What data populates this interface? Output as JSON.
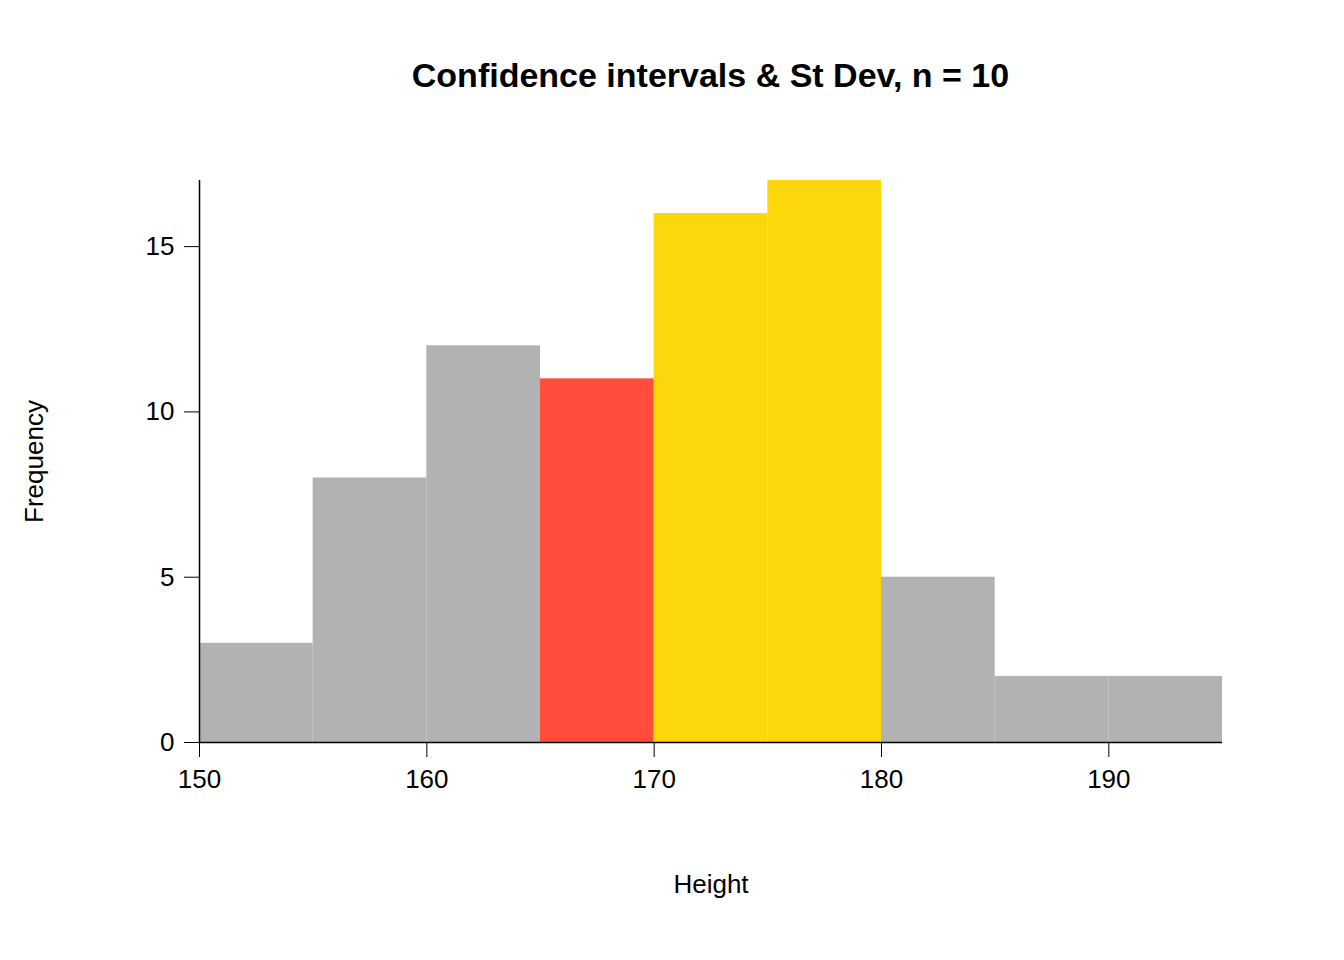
{
  "chart_data": {
    "type": "histogram",
    "title": "Confidence intervals & St Dev, n = 10",
    "x_label": "Height",
    "y_label": "Frequency",
    "bins": [
      150,
      155,
      160,
      165,
      170,
      175,
      180,
      185,
      190,
      195
    ],
    "values": [
      3,
      8,
      12,
      11,
      16,
      17,
      5,
      2,
      2
    ],
    "colors": [
      "#b2b2b2",
      "#b2b2b2",
      "#b2b2b2",
      "#ff4c3b",
      "#fcd70c",
      "#fcd70c",
      "#b2b2b2",
      "#b2b2b2",
      "#b2b2b2"
    ],
    "xlim": [
      150,
      195
    ],
    "ylim": [
      0,
      17
    ],
    "xticks": [
      150,
      160,
      170,
      180,
      190
    ],
    "yticks": [
      0,
      5,
      10,
      15
    ],
    "grid": false
  }
}
